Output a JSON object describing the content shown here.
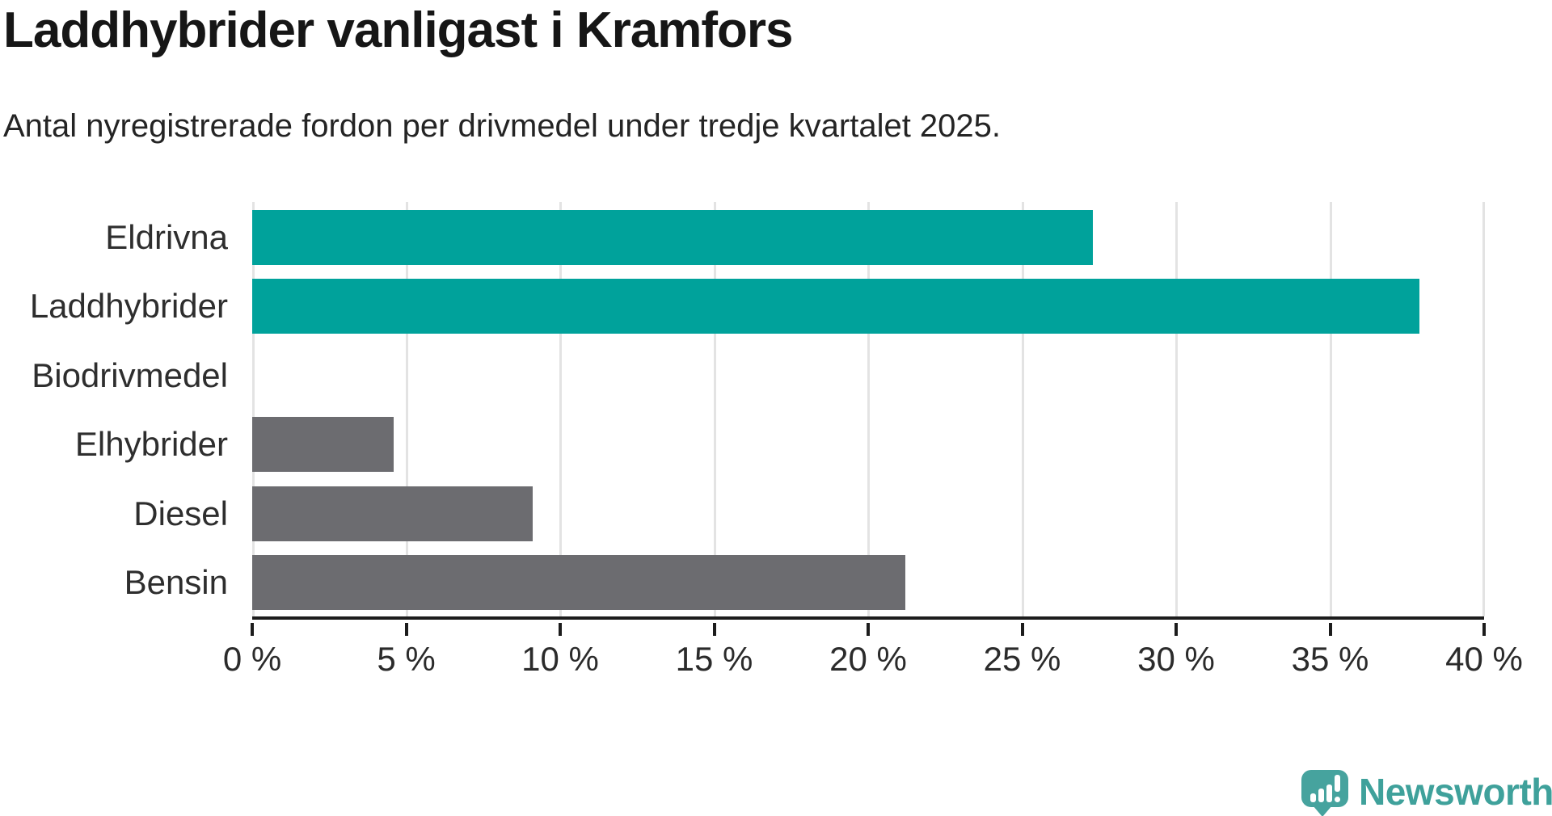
{
  "chart_data": {
    "type": "bar",
    "orientation": "horizontal",
    "title": "Laddhybrider vanligast i Kramfors",
    "subtitle": "Antal nyregistrerade fordon per drivmedel under tredje kvartalet 2025.",
    "categories": [
      "Eldrivna",
      "Laddhybrider",
      "Biodrivmedel",
      "Elhybrider",
      "Diesel",
      "Bensin"
    ],
    "values": [
      27.3,
      37.9,
      0,
      4.6,
      9.1,
      21.2
    ],
    "unit": "%",
    "bar_colors": [
      "#00a29b",
      "#00a29b",
      "#6c6c70",
      "#6c6c70",
      "#6c6c70",
      "#6c6c70"
    ],
    "highlight_color": "#00a29b",
    "default_color": "#6c6c70",
    "xlim": [
      0,
      40
    ],
    "x_ticks": [
      0,
      5,
      10,
      15,
      20,
      25,
      30,
      35,
      40
    ],
    "x_tick_labels": [
      "0 %",
      "5 %",
      "10 %",
      "15 %",
      "20 %",
      "25 %",
      "30 %",
      "35 %",
      "40 %"
    ],
    "grid": "vertical-gridlines-on",
    "legend": "none",
    "gridline_color": "#e3e3e3",
    "axis_color": "#1c1c1c"
  },
  "branding": {
    "logo_text": "Newsworthy",
    "logo_icon": "bar-chart-speech-bubble",
    "logo_color": "#46a39e"
  }
}
